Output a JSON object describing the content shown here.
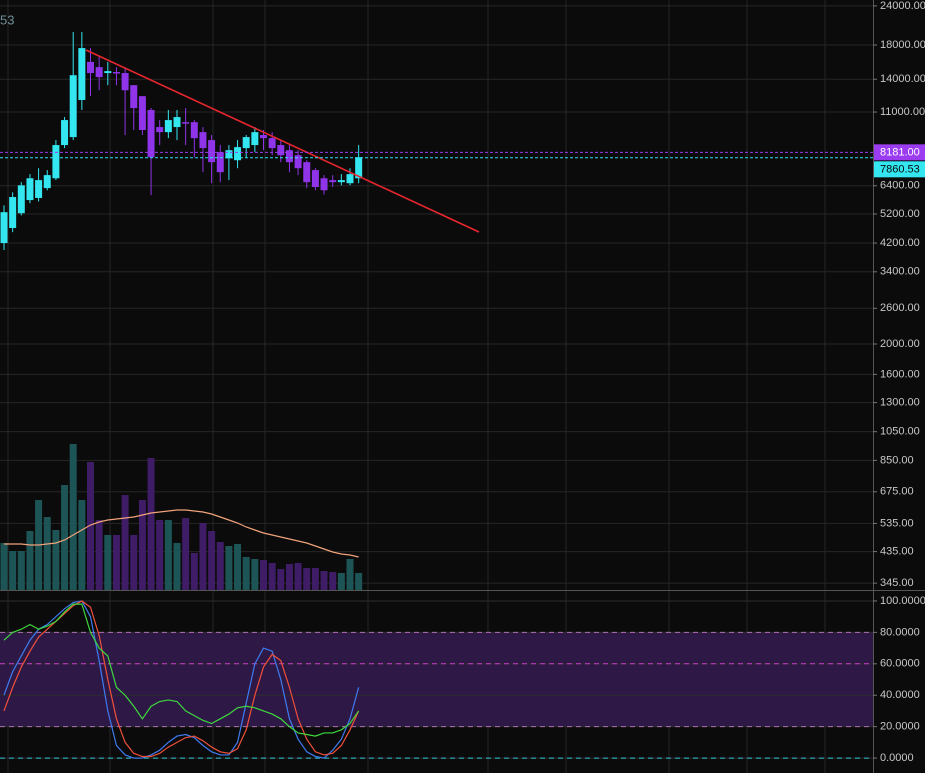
{
  "chart_data": {
    "type": "candlestick",
    "partial_label": "53",
    "log_scale": true,
    "grid": true,
    "up_color": "#33e6ef",
    "down_color": "#8f34e8",
    "categories": [
      null,
      null,
      null,
      null,
      null,
      null,
      null,
      null,
      null,
      null,
      null,
      null,
      null,
      null,
      null,
      null,
      null,
      null,
      null,
      null,
      null,
      null,
      null,
      null,
      null,
      null,
      null,
      null,
      null,
      null,
      null,
      null,
      null,
      null,
      null,
      null,
      null,
      null,
      null,
      null,
      null,
      null
    ],
    "open": [
      4200,
      4690,
      5230,
      5760,
      5850,
      6290,
      6760,
      8630,
      9150,
      12020,
      15900,
      15300,
      14650,
      14760,
      14650,
      13400,
      12360,
      11170,
      9850,
      9490,
      9850,
      10210,
      10210,
      9490,
      8950,
      8190,
      7830,
      7720,
      8440,
      8630,
      9290,
      9080,
      8630,
      8310,
      8010,
      7610,
      7180,
      6760,
      6670,
      6570,
      6520,
      6760
    ],
    "high": [
      5540,
      6100,
      6570,
      6970,
      7280,
      7180,
      8950,
      10600,
      19800,
      19800,
      17600,
      16500,
      15900,
      15300,
      15300,
      13400,
      12360,
      11330,
      10370,
      11170,
      11170,
      11330,
      10370,
      9850,
      9290,
      8630,
      8630,
      8950,
      9290,
      9850,
      9640,
      9490,
      8950,
      8630,
      8310,
      7720,
      7280,
      6920,
      6920,
      6970,
      7280,
      8630
    ],
    "low": [
      3990,
      4550,
      5150,
      5630,
      5700,
      6190,
      6670,
      8440,
      8950,
      11170,
      12360,
      12910,
      13400,
      13400,
      9290,
      9640,
      9290,
      5970,
      8630,
      9080,
      8950,
      8630,
      7890,
      7070,
      6520,
      6570,
      6670,
      7280,
      7890,
      8190,
      8310,
      8010,
      7610,
      7070,
      6920,
      6290,
      6190,
      6000,
      6340,
      6420,
      6420,
      6520
    ],
    "close": [
      5270,
      5890,
      6420,
      6760,
      6670,
      6920,
      8630,
      10370,
      14420,
      17600,
      14650,
      14220,
      14860,
      14650,
      12910,
      11330,
      9640,
      7890,
      9490,
      10370,
      10600,
      10140,
      9080,
      8440,
      7610,
      7070,
      8310,
      8500,
      9150,
      9490,
      9080,
      8440,
      8010,
      7610,
      7280,
      6570,
      6340,
      6190,
      6570,
      6670,
      6970,
      7890
    ],
    "ylim": [
      328,
      25060
    ],
    "yticks": [
      {
        "value": 24000,
        "label": "24000.00"
      },
      {
        "value": 18000,
        "label": "18000.00"
      },
      {
        "value": 14000,
        "label": "14000.00"
      },
      {
        "value": 11000,
        "label": "11000.00"
      },
      {
        "value": 6400,
        "label": "6400.00"
      },
      {
        "value": 5200,
        "label": "5200.00"
      },
      {
        "value": 4200,
        "label": "4200.00"
      },
      {
        "value": 3400,
        "label": "3400.00"
      },
      {
        "value": 2600,
        "label": "2600.00"
      },
      {
        "value": 2000,
        "label": "2000.00"
      },
      {
        "value": 1600,
        "label": "1600.00"
      },
      {
        "value": 1300,
        "label": "1300.00"
      },
      {
        "value": 1050,
        "label": "1050.00"
      },
      {
        "value": 850,
        "label": "850.00"
      },
      {
        "value": 675,
        "label": "675.00"
      },
      {
        "value": 535,
        "label": "535.00"
      },
      {
        "value": 435,
        "label": "435.00"
      },
      {
        "value": 345,
        "label": "345.00"
      }
    ],
    "price_lines": [
      {
        "value": 8181,
        "label": "8181.00",
        "color": "#9b3cf0"
      },
      {
        "value": 7860.53,
        "label": "7860.53",
        "color": "#33e6ef"
      }
    ],
    "volume": {
      "values": [
        47,
        39,
        39,
        59,
        90,
        73,
        60,
        105,
        146,
        90,
        128,
        70,
        55,
        55,
        95,
        55,
        90,
        132,
        70,
        70,
        47,
        72,
        37,
        67,
        59,
        48,
        44,
        46,
        33,
        31,
        30,
        27,
        21,
        26,
        27,
        22,
        22,
        19,
        18,
        17,
        31,
        17
      ],
      "ma": [
        46,
        46,
        46,
        45,
        45,
        46,
        47,
        50,
        55,
        60,
        65,
        68,
        70,
        71,
        72,
        73,
        75,
        77,
        78,
        79,
        80,
        80,
        79,
        78,
        76,
        73,
        70,
        67,
        63,
        60,
        57,
        55,
        53,
        51,
        49,
        47,
        44,
        41,
        38,
        36,
        35,
        33
      ],
      "ylim": [
        0,
        170
      ],
      "up_color": "#1d5556",
      "down_color": "#3f1c66",
      "ma_color": "#f0a27a"
    },
    "oscillator": {
      "ylim": [
        -9.5,
        105.7
      ],
      "yticks": [
        {
          "value": 100,
          "label": "100.0000"
        },
        {
          "value": 80,
          "label": "80.0000"
        },
        {
          "value": 60,
          "label": "60.0000"
        },
        {
          "value": 40,
          "label": "40.0000"
        },
        {
          "value": 20,
          "label": "20.0000"
        },
        {
          "value": 0,
          "label": "0.0000"
        }
      ],
      "band": {
        "range": [
          20,
          80
        ],
        "color": "#2e1846"
      },
      "levels": [
        {
          "value": 80,
          "color": "#b070b0"
        },
        {
          "value": 60,
          "color": "#d040d0"
        },
        {
          "value": 20,
          "color": "#b070b0"
        },
        {
          "value": 0,
          "color": "#33c8d8"
        }
      ],
      "series": [
        {
          "color": "#3f7cf0",
          "values": [
            40,
            55,
            65,
            75,
            82,
            85,
            90,
            95,
            99,
            100,
            90,
            62,
            30,
            8,
            2,
            0,
            0,
            2,
            5,
            10,
            14,
            15,
            13,
            8,
            4,
            2,
            2,
            10,
            35,
            60,
            70,
            68,
            50,
            25,
            12,
            4,
            1,
            0,
            5,
            12,
            25,
            45
          ]
        },
        {
          "color": "#f0503a",
          "values": [
            30,
            45,
            58,
            68,
            77,
            82,
            87,
            92,
            97,
            100,
            96,
            78,
            50,
            25,
            10,
            3,
            1,
            1,
            3,
            7,
            10,
            13,
            14,
            11,
            7,
            4,
            3,
            6,
            18,
            40,
            58,
            66,
            62,
            45,
            25,
            12,
            4,
            2,
            3,
            8,
            18,
            30
          ]
        },
        {
          "color": "#3ed83e",
          "values": [
            75,
            80,
            82,
            85,
            82,
            84,
            87,
            93,
            98,
            98,
            80,
            70,
            65,
            45,
            40,
            33,
            25,
            33,
            36,
            37,
            36,
            30,
            27,
            24,
            22,
            25,
            28,
            32,
            33,
            32,
            30,
            28,
            25,
            20,
            16,
            15,
            14,
            16,
            16,
            18,
            22,
            30
          ]
        }
      ]
    }
  }
}
